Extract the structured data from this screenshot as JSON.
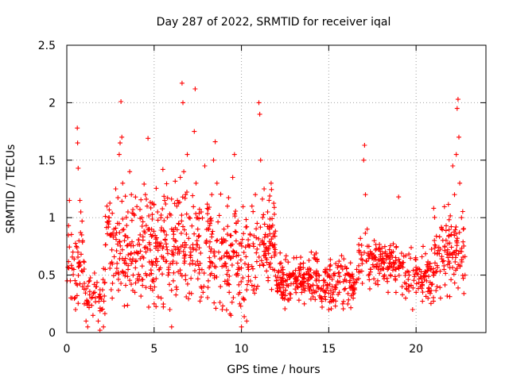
{
  "chart_data": {
    "type": "scatter",
    "title": "Day 287 of 2022, SRMTID for receiver iqal",
    "xlabel": "GPS time / hours",
    "ylabel": "SRMTID / TECUs",
    "xlim": [
      0,
      24
    ],
    "ylim": [
      0,
      2.5
    ],
    "xticks": [
      0,
      5,
      10,
      15,
      20
    ],
    "xtick_labels": [
      "0",
      "5",
      "10",
      "15",
      "20"
    ],
    "yticks": [
      0,
      0.5,
      1,
      1.5,
      2,
      2.5
    ],
    "ytick_labels": [
      "0",
      "0.5",
      "1",
      "1.5",
      "2",
      "2.5"
    ],
    "grid": true,
    "marker": "+",
    "series": [
      {
        "name": "SRMTID",
        "color": "#ff0000",
        "points": [
          [
            0.1,
            0.93
          ],
          [
            0.15,
            1.15
          ],
          [
            0.2,
            0.45
          ],
          [
            0.3,
            0.3
          ],
          [
            0.4,
            0.55
          ],
          [
            0.5,
            0.2
          ],
          [
            0.55,
            0.75
          ],
          [
            0.6,
            1.78
          ],
          [
            0.62,
            1.65
          ],
          [
            0.65,
            1.43
          ],
          [
            0.7,
            0.6
          ],
          [
            0.75,
            1.15
          ],
          [
            0.8,
            1.05
          ],
          [
            0.85,
            0.85
          ],
          [
            0.9,
            0.4
          ],
          [
            1.0,
            0.25
          ],
          [
            1.1,
            0.1
          ],
          [
            1.2,
            0.05
          ],
          [
            1.3,
            0.45
          ],
          [
            1.4,
            0.3
          ],
          [
            1.5,
            0.15
          ],
          [
            1.6,
            0.35
          ],
          [
            1.7,
            0.4
          ],
          [
            1.8,
            0.1
          ],
          [
            1.9,
            0.02
          ],
          [
            2.0,
            0.2
          ],
          [
            2.1,
            0.05
          ],
          [
            2.2,
            0.55
          ],
          [
            2.3,
            1.1
          ],
          [
            2.4,
            1.0
          ],
          [
            2.5,
            0.6
          ],
          [
            2.6,
            0.3
          ],
          [
            2.7,
            0.9
          ],
          [
            2.8,
            1.25
          ],
          [
            2.9,
            0.95
          ],
          [
            3.0,
            1.55
          ],
          [
            3.05,
            1.65
          ],
          [
            3.1,
            2.01
          ],
          [
            3.15,
            1.7
          ],
          [
            3.2,
            1.3
          ],
          [
            3.3,
            0.8
          ],
          [
            3.4,
            0.6
          ],
          [
            3.5,
            1.05
          ],
          [
            3.6,
            1.4
          ],
          [
            3.7,
            1.2
          ],
          [
            3.8,
            0.5
          ],
          [
            3.9,
            0.35
          ],
          [
            4.0,
            0.7
          ],
          [
            4.1,
            0.45
          ],
          [
            4.2,
            0.85
          ],
          [
            4.3,
            1.0
          ],
          [
            4.4,
            0.65
          ],
          [
            4.5,
            1.2
          ],
          [
            4.6,
            1.1
          ],
          [
            4.65,
            1.69
          ],
          [
            4.7,
            0.9
          ],
          [
            4.8,
            0.4
          ],
          [
            4.9,
            0.6
          ],
          [
            5.0,
            0.25
          ],
          [
            5.1,
            0.75
          ],
          [
            5.2,
            1.05
          ],
          [
            5.3,
            0.55
          ],
          [
            5.4,
            0.3
          ],
          [
            5.5,
            1.42
          ],
          [
            5.6,
            1.15
          ],
          [
            5.7,
            0.85
          ],
          [
            5.8,
            0.5
          ],
          [
            5.9,
            0.2
          ],
          [
            6.0,
            0.05
          ],
          [
            6.1,
            0.45
          ],
          [
            6.2,
            0.8
          ],
          [
            6.3,
            1.1
          ],
          [
            6.4,
            0.95
          ],
          [
            6.5,
            1.35
          ],
          [
            6.6,
            2.17
          ],
          [
            6.65,
            2.0
          ],
          [
            6.7,
            1.4
          ],
          [
            6.8,
            1.2
          ],
          [
            6.9,
            1.55
          ],
          [
            7.0,
            1.0
          ],
          [
            7.1,
            0.7
          ],
          [
            7.2,
            0.6
          ],
          [
            7.3,
            1.75
          ],
          [
            7.35,
            2.12
          ],
          [
            7.4,
            1.3
          ],
          [
            7.5,
            0.9
          ],
          [
            7.6,
            0.55
          ],
          [
            7.7,
            1.05
          ],
          [
            7.8,
            0.35
          ],
          [
            7.9,
            1.45
          ],
          [
            8.0,
            0.8
          ],
          [
            8.1,
            0.45
          ],
          [
            8.2,
            0.95
          ],
          [
            8.3,
            1.2
          ],
          [
            8.4,
            1.5
          ],
          [
            8.5,
            1.66
          ],
          [
            8.6,
            1.3
          ],
          [
            8.7,
            0.7
          ],
          [
            8.8,
            0.4
          ],
          [
            8.9,
            0.2
          ],
          [
            9.0,
            0.9
          ],
          [
            9.1,
            0.6
          ],
          [
            9.2,
            1.1
          ],
          [
            9.3,
            0.35
          ],
          [
            9.4,
            0.15
          ],
          [
            9.5,
            1.35
          ],
          [
            9.6,
            1.55
          ],
          [
            9.7,
            0.95
          ],
          [
            9.8,
            0.5
          ],
          [
            9.9,
            0.25
          ],
          [
            10.0,
            0.05
          ],
          [
            10.1,
            0.3
          ],
          [
            10.2,
            0.6
          ],
          [
            10.3,
            0.1
          ],
          [
            10.4,
            0.45
          ],
          [
            10.5,
            0.85
          ],
          [
            10.6,
            1.1
          ],
          [
            10.7,
            0.75
          ],
          [
            10.8,
            1.2
          ],
          [
            10.9,
            0.95
          ],
          [
            11.0,
            2.0
          ],
          [
            11.05,
            1.9
          ],
          [
            11.1,
            1.5
          ],
          [
            11.2,
            0.8
          ],
          [
            11.3,
            1.25
          ],
          [
            11.4,
            0.65
          ],
          [
            11.5,
            1.05
          ],
          [
            11.6,
            0.9
          ],
          [
            11.7,
            1.3
          ],
          [
            11.8,
            0.55
          ],
          [
            11.9,
            0.7
          ],
          [
            12.0,
            0.45
          ],
          [
            12.2,
            0.6
          ],
          [
            12.4,
            0.35
          ],
          [
            12.6,
            0.5
          ],
          [
            12.8,
            0.3
          ],
          [
            13.0,
            0.65
          ],
          [
            13.2,
            0.4
          ],
          [
            13.4,
            0.55
          ],
          [
            13.6,
            0.25
          ],
          [
            13.8,
            0.45
          ],
          [
            14.0,
            0.7
          ],
          [
            14.2,
            0.35
          ],
          [
            14.4,
            0.5
          ],
          [
            14.6,
            0.3
          ],
          [
            14.8,
            0.55
          ],
          [
            15.0,
            0.2
          ],
          [
            15.2,
            0.4
          ],
          [
            15.4,
            0.6
          ],
          [
            15.6,
            0.35
          ],
          [
            15.8,
            0.25
          ],
          [
            16.0,
            0.45
          ],
          [
            16.2,
            0.5
          ],
          [
            16.4,
            0.3
          ],
          [
            16.6,
            0.55
          ],
          [
            16.8,
            0.7
          ],
          [
            17.0,
            1.5
          ],
          [
            17.05,
            1.63
          ],
          [
            17.1,
            1.2
          ],
          [
            17.2,
            0.9
          ],
          [
            17.3,
            0.75
          ],
          [
            17.4,
            0.55
          ],
          [
            17.5,
            0.65
          ],
          [
            17.6,
            0.8
          ],
          [
            17.8,
            0.45
          ],
          [
            18.0,
            0.6
          ],
          [
            18.2,
            0.5
          ],
          [
            18.4,
            0.35
          ],
          [
            18.6,
            0.7
          ],
          [
            18.8,
            0.55
          ],
          [
            19.0,
            1.18
          ],
          [
            19.1,
            0.6
          ],
          [
            19.2,
            0.4
          ],
          [
            19.4,
            0.3
          ],
          [
            19.6,
            0.5
          ],
          [
            19.8,
            0.2
          ],
          [
            20.0,
            0.35
          ],
          [
            20.2,
            0.55
          ],
          [
            20.4,
            0.75
          ],
          [
            20.6,
            0.45
          ],
          [
            20.8,
            0.6
          ],
          [
            21.0,
            0.5
          ],
          [
            21.2,
            0.4
          ],
          [
            21.4,
            0.3
          ],
          [
            21.6,
            0.55
          ],
          [
            21.8,
            0.7
          ],
          [
            22.0,
            0.85
          ],
          [
            22.1,
            1.45
          ],
          [
            22.2,
            1.2
          ],
          [
            22.3,
            1.55
          ],
          [
            22.35,
            1.95
          ],
          [
            22.4,
            2.03
          ],
          [
            22.45,
            1.7
          ],
          [
            22.5,
            1.3
          ],
          [
            22.6,
            1.0
          ],
          [
            22.7,
            0.9
          ],
          [
            22.8,
            0.5
          ]
        ]
      }
    ],
    "density": {
      "description": "dense cloud of points per hour",
      "hourly_profile": [
        {
          "h0": 0.0,
          "h1": 1.0,
          "lo": 0.1,
          "hi": 1.1,
          "n": 45
        },
        {
          "h0": 1.0,
          "h1": 2.2,
          "lo": 0.0,
          "hi": 0.6,
          "n": 45
        },
        {
          "h0": 2.2,
          "h1": 5.0,
          "lo": 0.05,
          "hi": 1.4,
          "n": 170
        },
        {
          "h0": 5.0,
          "h1": 9.0,
          "lo": 0.05,
          "hi": 1.45,
          "n": 230
        },
        {
          "h0": 9.0,
          "h1": 11.0,
          "lo": 0.0,
          "hi": 1.3,
          "n": 110
        },
        {
          "h0": 11.0,
          "h1": 12.0,
          "lo": 0.3,
          "hi": 1.3,
          "n": 70
        },
        {
          "h0": 12.0,
          "h1": 16.6,
          "lo": 0.15,
          "hi": 0.75,
          "n": 280
        },
        {
          "h0": 16.6,
          "h1": 19.2,
          "lo": 0.3,
          "hi": 0.9,
          "n": 130
        },
        {
          "h0": 19.2,
          "h1": 21.0,
          "lo": 0.2,
          "hi": 0.8,
          "n": 90
        },
        {
          "h0": 21.0,
          "h1": 22.8,
          "lo": 0.2,
          "hi": 1.2,
          "n": 110
        }
      ]
    }
  }
}
